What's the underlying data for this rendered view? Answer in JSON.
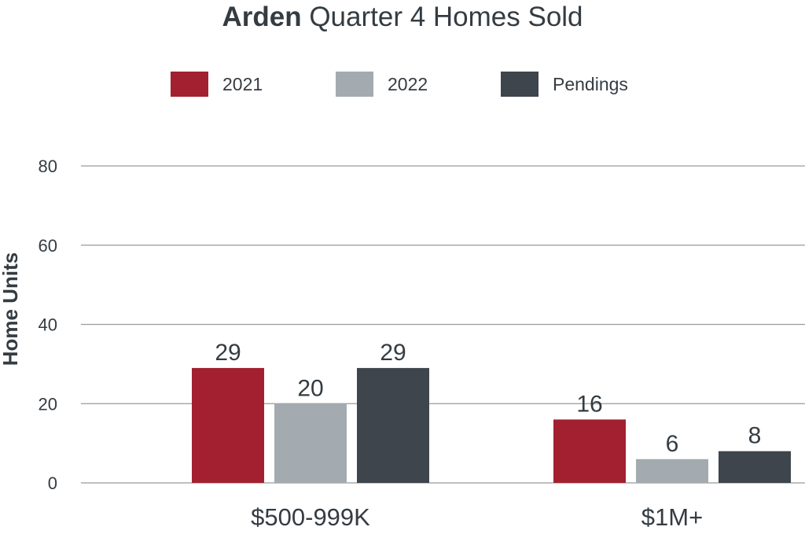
{
  "title": {
    "bold": "Arden",
    "rest": " Quarter 4 Homes Sold"
  },
  "colors": {
    "2021": "#a32030",
    "2022": "#a3abb0",
    "Pendings": "#3e454c",
    "grid": "#9a9a9a",
    "text": "#343c42"
  },
  "chart_data": {
    "type": "bar",
    "title": "Arden Quarter 4 Homes Sold",
    "xlabel": "",
    "ylabel": "Home Units",
    "ylim": [
      0,
      80
    ],
    "yticks": [
      0,
      20,
      40,
      60,
      80
    ],
    "grid": true,
    "legend_position": "top",
    "categories": [
      "$500-999K",
      "$1M+"
    ],
    "series": [
      {
        "name": "2021",
        "values": [
          29,
          16
        ],
        "labels": [
          "29",
          "16"
        ]
      },
      {
        "name": "2022",
        "values": [
          20,
          6
        ],
        "labels": [
          "20",
          "6"
        ]
      },
      {
        "name": "Pendings",
        "values": [
          29,
          8
        ],
        "labels": [
          "29",
          "8"
        ]
      }
    ]
  }
}
